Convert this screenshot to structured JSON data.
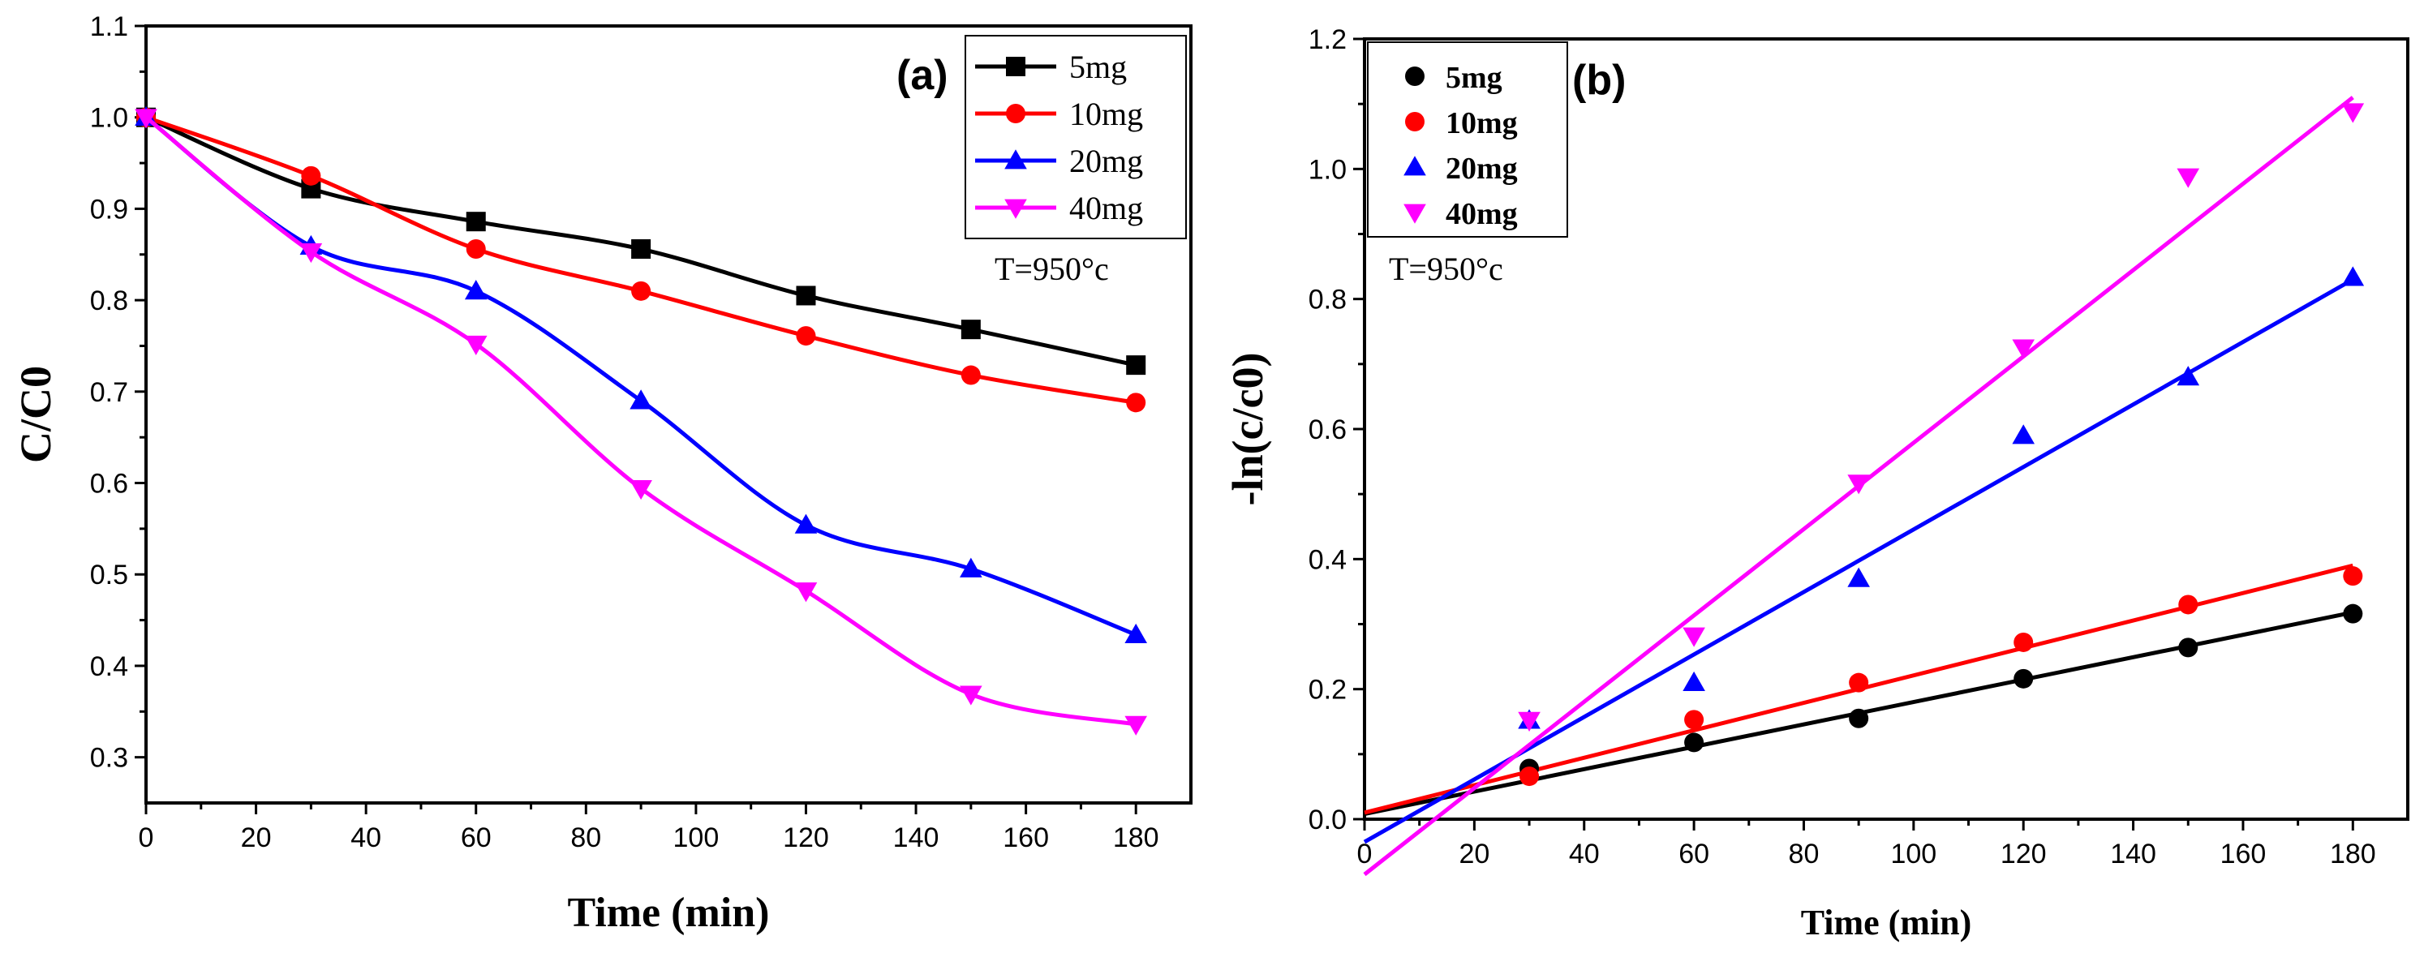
{
  "chart_data": [
    {
      "type": "line",
      "panel_label": "(a)",
      "title": "",
      "xlabel": "Time (min)",
      "ylabel": "C/C0",
      "xlim": [
        0,
        190
      ],
      "ylim": [
        0.25,
        1.1
      ],
      "xticks": [
        0,
        20,
        40,
        60,
        80,
        100,
        120,
        140,
        160,
        180
      ],
      "yticks": [
        0.3,
        0.4,
        0.5,
        0.6,
        0.7,
        0.8,
        0.9,
        1.0,
        1.1
      ],
      "ytick_labels": [
        "0.3",
        "0.4",
        "0.5",
        "0.6",
        "0.7",
        "0.8",
        "0.9",
        "1.0",
        "1.1"
      ],
      "annotation": "T=950°c",
      "legend_position": "top-right",
      "x": [
        0,
        30,
        60,
        90,
        120,
        150,
        180
      ],
      "series": [
        {
          "name": "5mg",
          "color": "#000000",
          "marker": "square",
          "values": [
            1.0,
            0.922,
            0.886,
            0.856,
            0.805,
            0.768,
            0.729
          ]
        },
        {
          "name": "10mg",
          "color": "#ff0000",
          "marker": "circle",
          "values": [
            1.0,
            0.936,
            0.856,
            0.81,
            0.761,
            0.718,
            0.688
          ]
        },
        {
          "name": "20mg",
          "color": "#0000ff",
          "marker": "triangle-up",
          "values": [
            1.0,
            0.859,
            0.81,
            0.69,
            0.554,
            0.506,
            0.434
          ]
        },
        {
          "name": "40mg",
          "color": "#ff00ff",
          "marker": "triangle-down",
          "values": [
            1.0,
            0.853,
            0.752,
            0.594,
            0.482,
            0.369,
            0.336
          ]
        }
      ]
    },
    {
      "type": "scatter",
      "panel_label": "(b)",
      "title": "",
      "xlabel": "Time (min)",
      "ylabel": "-ln(c/c0)",
      "xlim": [
        0,
        190
      ],
      "ylim": [
        0,
        1.2
      ],
      "xticks": [
        0,
        20,
        40,
        60,
        80,
        100,
        120,
        140,
        160,
        180
      ],
      "yticks": [
        0,
        0.2,
        0.4,
        0.6,
        0.8,
        1.0,
        1.2
      ],
      "ytick_labels": [
        "0.0",
        "0.2",
        "0.4",
        "0.6",
        "0.8",
        "1.0",
        "1.2"
      ],
      "annotation": "T=950°c",
      "legend_position": "top-left",
      "x": [
        30,
        60,
        90,
        120,
        150,
        180
      ],
      "series": [
        {
          "name": "5mg",
          "color": "#000000",
          "marker": "circle",
          "values": [
            0.078,
            0.118,
            0.155,
            0.216,
            0.264,
            0.316
          ],
          "fit": [
            [
              0,
              0.008
            ],
            [
              180,
              0.318
            ]
          ]
        },
        {
          "name": "10mg",
          "color": "#ff0000",
          "marker": "circle",
          "values": [
            0.066,
            0.153,
            0.21,
            0.272,
            0.33,
            0.374
          ],
          "fit": [
            [
              0,
              0.01
            ],
            [
              180,
              0.39
            ]
          ]
        },
        {
          "name": "20mg",
          "color": "#0000ff",
          "marker": "triangle-up",
          "values": [
            0.152,
            0.21,
            0.37,
            0.59,
            0.68,
            0.833
          ],
          "fit": [
            [
              0,
              -0.035
            ],
            [
              180,
              0.83
            ]
          ]
        },
        {
          "name": "40mg",
          "color": "#ff00ff",
          "marker": "triangle-down",
          "values": [
            0.152,
            0.282,
            0.517,
            0.725,
            0.988,
            1.088
          ],
          "fit": [
            [
              0,
              -0.085
            ],
            [
              180,
              1.11
            ]
          ]
        }
      ]
    }
  ]
}
